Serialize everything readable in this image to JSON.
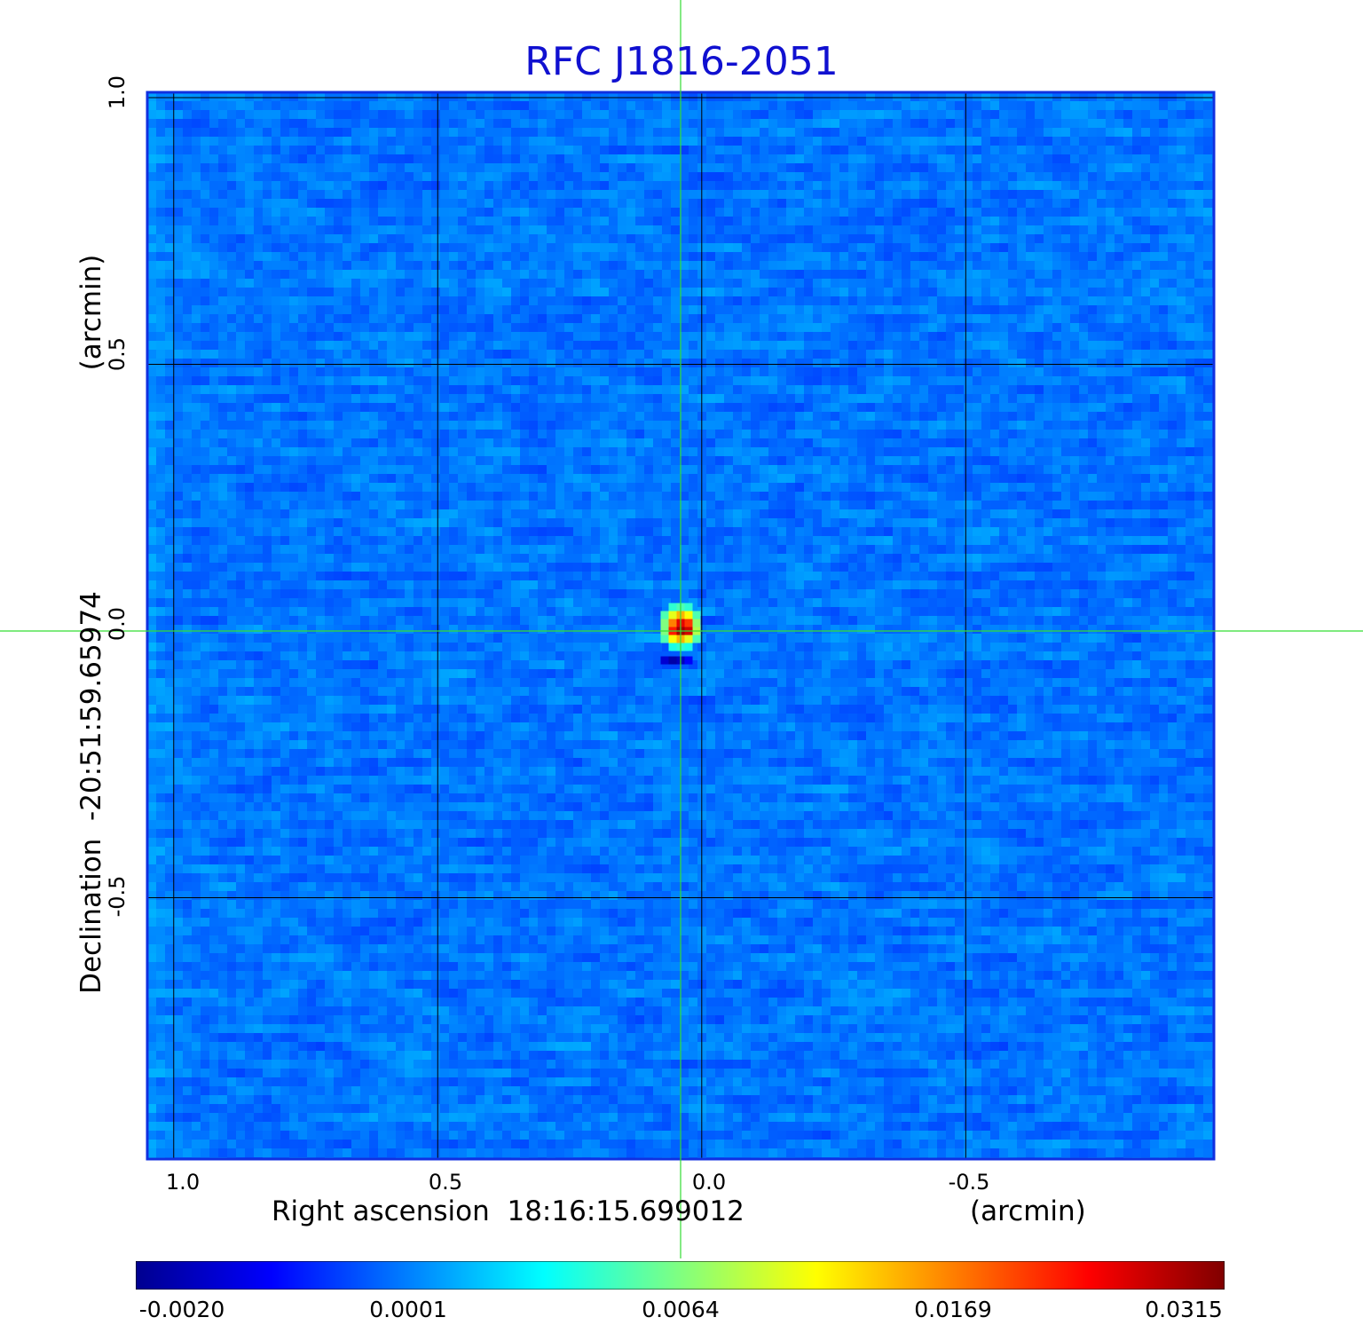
{
  "chart_data": {
    "type": "heatmap",
    "title": "RFC J1816-2051",
    "xlabel": "Right ascension  18:16:15.699012",
    "xunit": "(arcmin)",
    "ylabel": "Declination  -20:51:59.65974",
    "yunit": "(arcmin)",
    "x_ticks": [
      "1.0",
      "0.5",
      "0.0",
      "-0.5"
    ],
    "x_tick_values": [
      1.0,
      0.5,
      0.0,
      -0.5
    ],
    "y_ticks": [
      "1.0",
      "0.5",
      "0.0",
      "-0.5"
    ],
    "y_tick_values": [
      1.0,
      0.5,
      0.0,
      -0.5
    ],
    "xlim": [
      1.05,
      -0.97
    ],
    "ylim": [
      -0.99,
      1.01
    ],
    "grid": true,
    "colormap": "jet",
    "colorbar": {
      "labels": [
        "-0.0020",
        "0.0001",
        "0.0064",
        "0.0169",
        "0.0315"
      ],
      "values": [
        -0.002,
        0.0001,
        0.0064,
        0.0169,
        0.0315
      ]
    },
    "background_level": 0.0001,
    "source": {
      "x": 0.04,
      "y": 0.0,
      "peak": 0.0315
    },
    "negative_feature": {
      "x": 0.04,
      "y": -0.055,
      "value": -0.002
    },
    "crosshair": {
      "x": 0.04,
      "y": 0.0,
      "color": "#33dd33"
    }
  }
}
